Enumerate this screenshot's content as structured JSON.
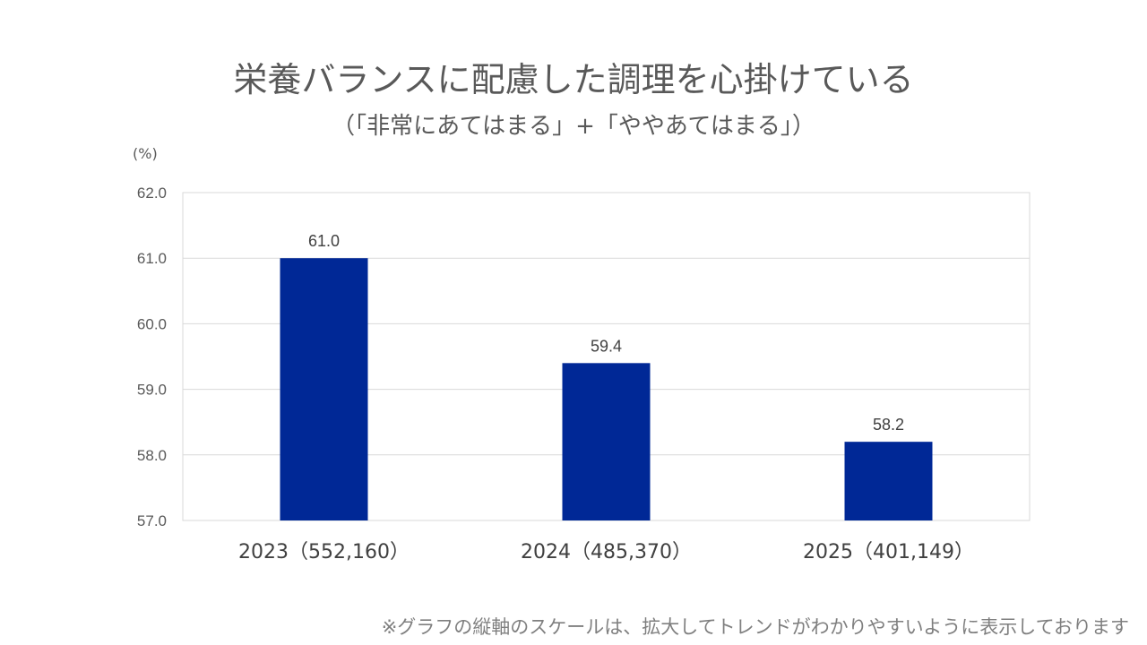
{
  "title": "栄養バランスに配慮した調理を心掛けている",
  "subtitle": "（「非常にあてはまる」+「ややあてはまる」）",
  "unit_label": "(%)",
  "footnote": "※グラフの縦軸のスケールは、拡大してトレンドがわかりやすいように表示しております",
  "colors": {
    "bar": "#002896",
    "grid": "#d9d9d9",
    "text": "#595959"
  },
  "chart_data": {
    "type": "bar",
    "title": "栄養バランスに配慮した調理を心掛けている",
    "subtitle": "（「非常にあてはまる」+「ややあてはまる」）",
    "xlabel": "",
    "ylabel": "(%)",
    "categories": [
      "2023（552,160）",
      "2024（485,370）",
      "2025（401,149）"
    ],
    "values": [
      61.0,
      59.4,
      58.2
    ],
    "value_labels": [
      "61.0",
      "59.4",
      "58.2"
    ],
    "ylim": [
      57.0,
      62.0
    ],
    "yticks": [
      57.0,
      58.0,
      59.0,
      60.0,
      61.0,
      62.0
    ],
    "ytick_labels": [
      "57.0",
      "58.0",
      "59.0",
      "60.0",
      "61.0",
      "62.0"
    ],
    "grid": true,
    "legend": "none"
  }
}
